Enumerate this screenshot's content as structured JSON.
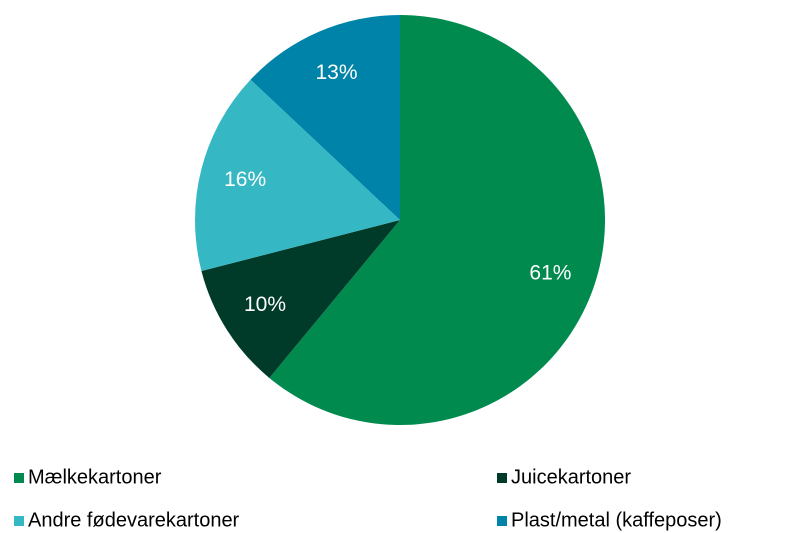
{
  "chart_data": {
    "type": "pie",
    "categories": [
      "Mælkekartoner",
      "Juicekartoner",
      "Andre fødevarekartoner",
      "Plast/metal (kaffeposer)"
    ],
    "values": [
      61,
      10,
      16,
      13
    ],
    "value_labels": [
      "61%",
      "10%",
      "16%",
      "13%"
    ],
    "colors": [
      "#008a4e",
      "#003b2a",
      "#35b8c4",
      "#0083a8"
    ]
  }
}
